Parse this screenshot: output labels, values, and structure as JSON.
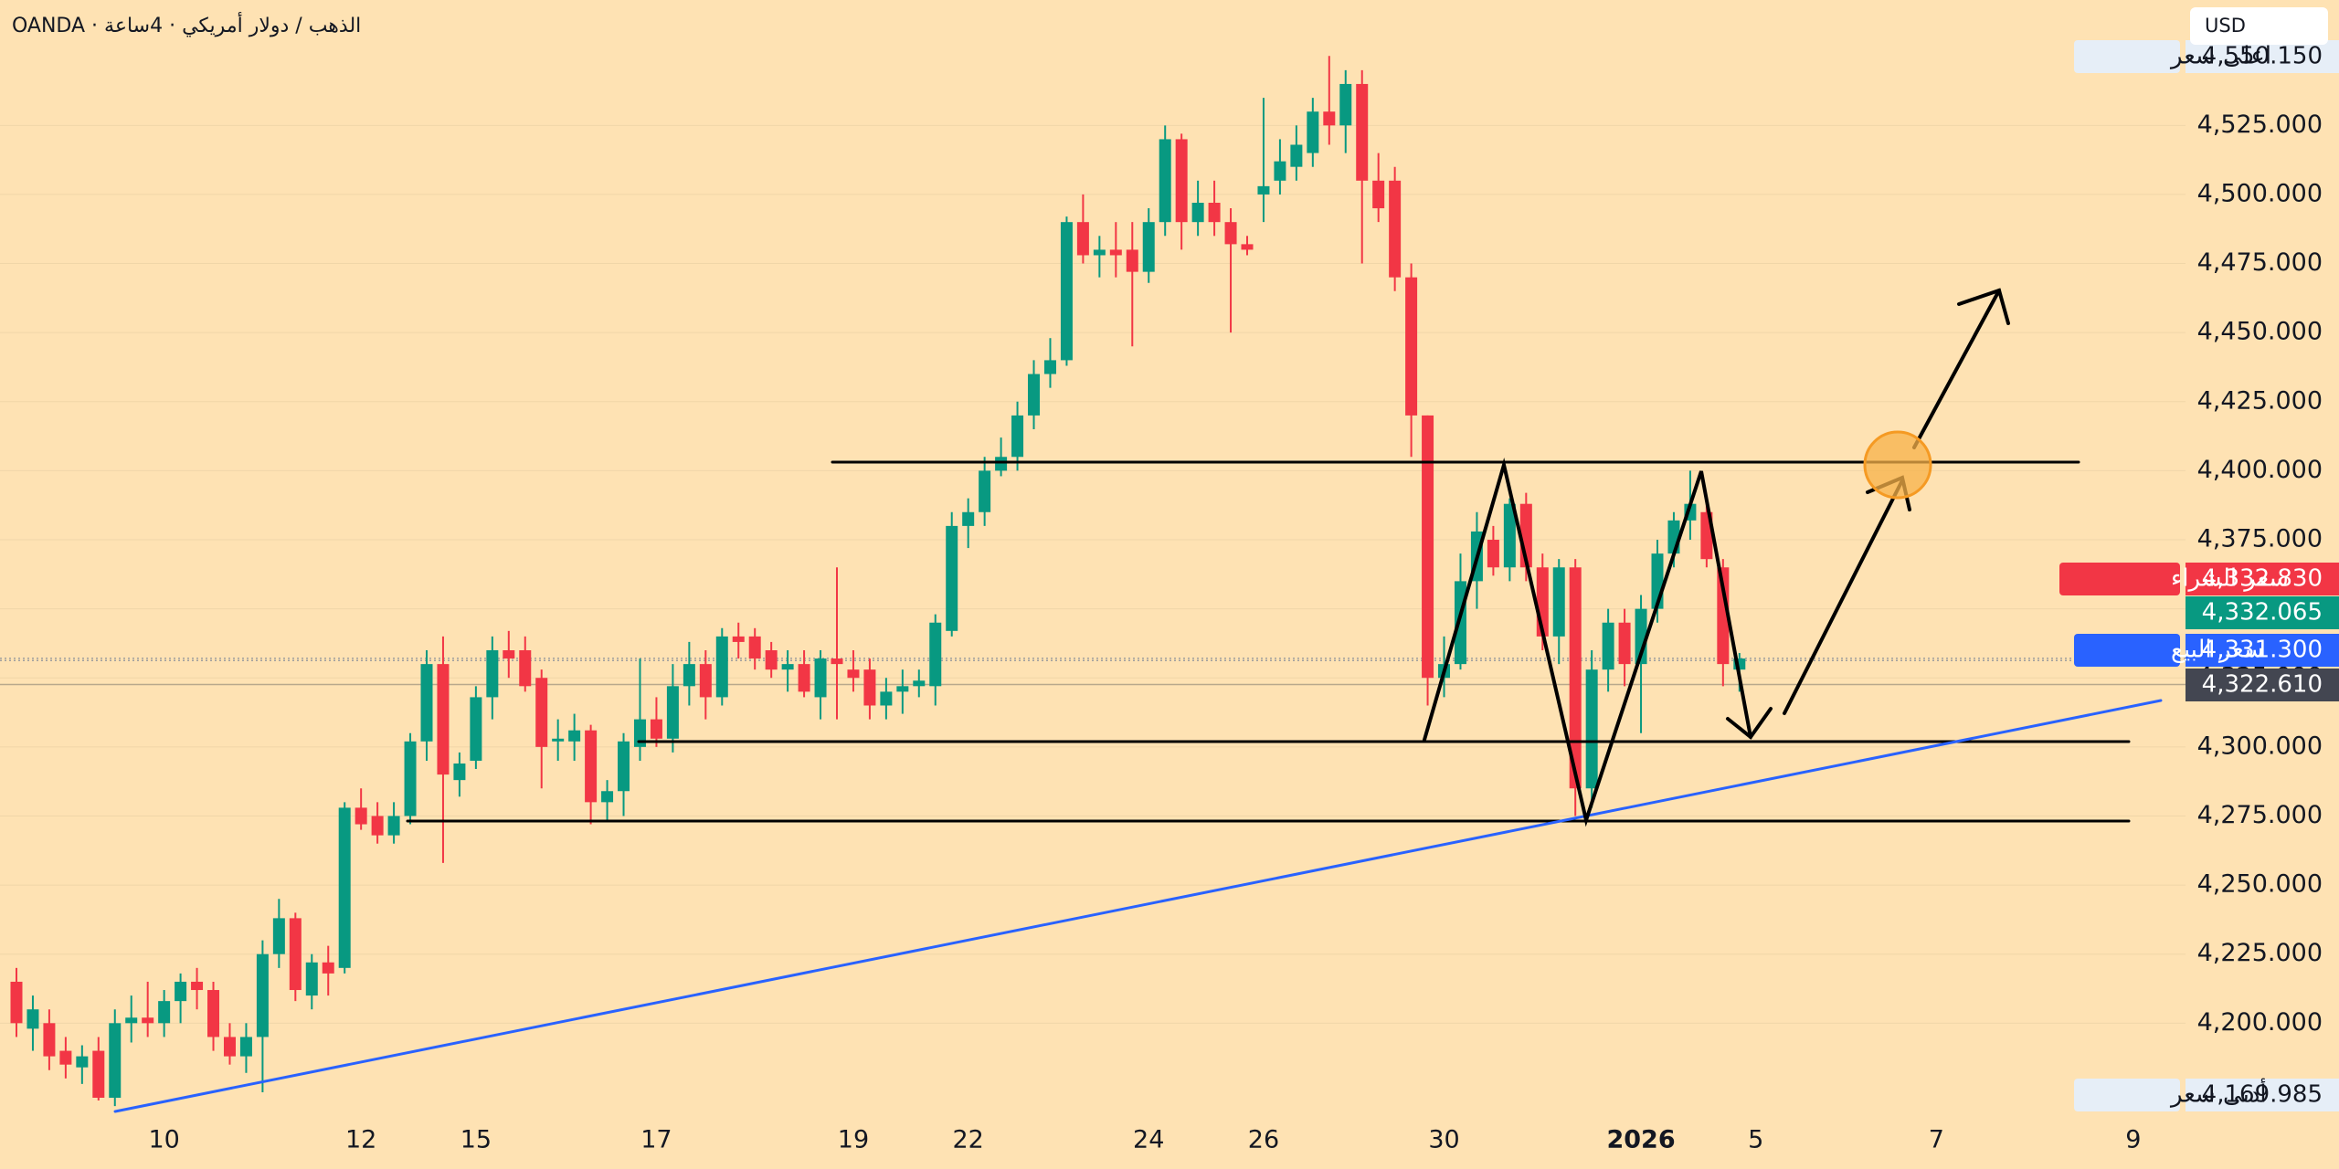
{
  "header": {
    "symbol": "OANDA · الذهب / دولار أمريكي · 4ساعة",
    "currency": "USD"
  },
  "chart_data": {
    "type": "candlestick",
    "categories": [
      null,
      null,
      null,
      null,
      null,
      null,
      null,
      null,
      null,
      "10",
      null,
      null,
      null,
      null,
      null,
      null,
      null,
      null,
      null,
      null,
      null,
      "12",
      null,
      null,
      null,
      null,
      null,
      null,
      "15",
      null,
      null,
      null,
      null,
      null,
      null,
      null,
      null,
      null,
      null,
      "17",
      null,
      null,
      null,
      null,
      null,
      null,
      null,
      null,
      null,
      null,
      null,
      "19",
      null,
      null,
      null,
      null,
      null,
      null,
      "22",
      null,
      null,
      null,
      null,
      null,
      null,
      null,
      null,
      null,
      null,
      "24",
      null,
      null,
      null,
      null,
      null,
      null,
      "26",
      null,
      null,
      null,
      null,
      null,
      null,
      null,
      null,
      null,
      null,
      "30",
      null,
      null,
      null,
      null,
      null,
      null,
      null,
      null,
      null,
      null,
      null,
      "2026",
      null,
      null,
      null,
      null,
      null,
      null,
      "5",
      null,
      null,
      null,
      null,
      null,
      null,
      null,
      null,
      null,
      null,
      "7",
      null,
      null,
      null,
      null,
      null,
      null,
      null,
      null,
      null,
      null,
      null,
      "9",
      null,
      null,
      null
    ],
    "open": [
      4215,
      4198,
      4200,
      4190,
      4184,
      4190,
      4173,
      4200,
      4202,
      4200,
      4208,
      4215,
      4212,
      4195,
      4188,
      4195,
      4225,
      4238,
      4210,
      4222,
      4220,
      4278,
      4275,
      4268,
      4275,
      4302,
      4330,
      4288,
      4295,
      4318,
      4335,
      4335,
      4325,
      4302,
      4302,
      4306,
      4280,
      4284,
      4300,
      4310,
      4303,
      4322,
      4330,
      4318,
      4340,
      4340,
      4335,
      4328,
      4330,
      4318,
      4332,
      4328,
      4328,
      4315,
      4320,
      4322,
      4322,
      4342,
      4380,
      4385,
      4400,
      4405,
      4420,
      4435,
      4440,
      4490,
      4478,
      4480,
      4480,
      4472,
      4490,
      4520,
      4490,
      4497,
      4490,
      4482,
      4500,
      4505,
      4510,
      4515,
      4530,
      4525,
      4540,
      4505,
      4505,
      4470,
      4420,
      4325,
      4330,
      4360,
      4375,
      4365,
      4388,
      4365,
      4340,
      4365,
      4285,
      4328,
      4345,
      4330,
      4350,
      4370,
      4382,
      4385,
      4365,
      4328,
      null,
      null,
      null,
      null,
      null,
      null,
      null,
      null,
      null,
      null,
      null,
      null,
      null,
      null,
      null,
      null,
      null,
      null,
      null,
      null,
      null,
      null,
      null,
      null,
      null,
      null,
      null
    ],
    "high": [
      4220,
      4210,
      4205,
      4195,
      4192,
      4195,
      4205,
      4210,
      4215,
      4212,
      4218,
      4220,
      4215,
      4200,
      4200,
      4230,
      4245,
      4240,
      4225,
      4228,
      4280,
      4285,
      4280,
      4280,
      4305,
      4335,
      4340,
      4298,
      4322,
      4340,
      4342,
      4340,
      4328,
      4310,
      4312,
      4308,
      4288,
      4305,
      4332,
      4318,
      4330,
      4338,
      4335,
      4343,
      4345,
      4343,
      4338,
      4335,
      4335,
      4335,
      4365,
      4335,
      4332,
      4325,
      4328,
      4328,
      4348,
      4385,
      4390,
      4405,
      4412,
      4425,
      4440,
      4448,
      4492,
      4500,
      4485,
      4490,
      4490,
      4495,
      4525,
      4522,
      4505,
      4505,
      4495,
      4485,
      4535,
      4520,
      4525,
      4535,
      4550.15,
      4545,
      4545,
      4515,
      4510,
      4475,
      4420,
      4340,
      4370,
      4385,
      4380,
      4390,
      4392,
      4370,
      4368,
      4368,
      4335,
      4350,
      4350,
      4355,
      4375,
      4385,
      4400,
      4390,
      4368,
      4334,
      null,
      null,
      null,
      null,
      null,
      null,
      null,
      null,
      null,
      null,
      null,
      null,
      null,
      null,
      null,
      null,
      null,
      null,
      null,
      null,
      null,
      null,
      null,
      null,
      null,
      null,
      null
    ],
    "low": [
      4195,
      4190,
      4183,
      4180,
      4178,
      4172,
      4169.985,
      4193,
      4195,
      4195,
      4200,
      4205,
      4190,
      4185,
      4182,
      4175,
      4220,
      4208,
      4205,
      4210,
      4218,
      4270,
      4265,
      4265,
      4272,
      4295,
      4258,
      4282,
      4292,
      4310,
      4325,
      4320,
      4285,
      4295,
      4295,
      4272,
      4273,
      4275,
      4295,
      4300,
      4298,
      4315,
      4310,
      4315,
      4332,
      4328,
      4325,
      4320,
      4318,
      4310,
      4310,
      4320,
      4310,
      4310,
      4312,
      4318,
      4315,
      4340,
      4372,
      4380,
      4398,
      4400,
      4415,
      4430,
      4438,
      4475,
      4470,
      4470,
      4445,
      4468,
      4485,
      4480,
      4485,
      4485,
      4450,
      4478,
      4490,
      4500,
      4505,
      4510,
      4518,
      4515,
      4475,
      4490,
      4465,
      4405,
      4315,
      4318,
      4328,
      4350,
      4362,
      4360,
      4360,
      4335,
      4330,
      4275,
      4278,
      4320,
      4322,
      4305,
      4345,
      4365,
      4375,
      4365,
      4322,
      4320,
      null,
      null,
      null,
      null,
      null,
      null,
      null,
      null,
      null,
      null,
      null,
      null,
      null,
      null,
      null,
      null,
      null,
      null,
      null,
      null,
      null,
      null,
      null,
      null,
      null,
      null,
      null
    ],
    "close": [
      4200,
      4205,
      4188,
      4185,
      4188,
      4173,
      4200,
      4202,
      4200,
      4208,
      4215,
      4212,
      4195,
      4188,
      4195,
      4225,
      4238,
      4212,
      4222,
      4218,
      4278,
      4272,
      4268,
      4275,
      4302,
      4330,
      4290,
      4294,
      4318,
      4335,
      4332,
      4322,
      4300,
      4303,
      4306,
      4280,
      4284,
      4302,
      4310,
      4303,
      4322,
      4330,
      4318,
      4340,
      4338,
      4332,
      4328,
      4330,
      4320,
      4332,
      4330,
      4325,
      4315,
      4320,
      4322,
      4324,
      4345,
      4380,
      4385,
      4400,
      4405,
      4420,
      4435,
      4440,
      4490,
      4478,
      4480,
      4478,
      4472,
      4490,
      4520,
      4490,
      4497,
      4490,
      4482,
      4480,
      4503,
      4512,
      4518,
      4530,
      4525,
      4540,
      4505,
      4495,
      4470,
      4420,
      4325,
      4330,
      4360,
      4378,
      4365,
      4388,
      4365,
      4340,
      4365,
      4285,
      4328,
      4345,
      4330,
      4350,
      4370,
      4382,
      4388,
      4368,
      4330,
      4332,
      null,
      null,
      null,
      null,
      null,
      null,
      null,
      null,
      null,
      null,
      null,
      null,
      null,
      null,
      null,
      null,
      null,
      null,
      null,
      null,
      null,
      null,
      null,
      null,
      null,
      null,
      null
    ],
    "up_color": "#089981",
    "down_color": "#f23645",
    "ylim": [
      4164.4,
      4570.4
    ],
    "yticks": [
      {
        "value": 4200,
        "label": "4,200.000"
      },
      {
        "value": 4225,
        "label": "4,225.000"
      },
      {
        "value": 4250,
        "label": "4,250.000"
      },
      {
        "value": 4275,
        "label": "4,275.000"
      },
      {
        "value": 4300,
        "label": "4,300.000"
      },
      {
        "value": 4325,
        "label": "4,325.000"
      },
      {
        "value": 4350,
        "label": "4,350.000"
      },
      {
        "value": 4375,
        "label": "4,375.000"
      },
      {
        "value": 4400,
        "label": "4,400.000"
      },
      {
        "value": 4425,
        "label": "4,425.000"
      },
      {
        "value": 4450,
        "label": "4,450.000"
      },
      {
        "value": 4475,
        "label": "4,475.000"
      },
      {
        "value": 4500,
        "label": "4,500.000"
      },
      {
        "value": 4525,
        "label": "4,525.000"
      }
    ],
    "grid": true,
    "price_labels": [
      {
        "name": "أعلى سعر",
        "value": 4550.15,
        "label": "4,550.150",
        "color": "#e6eef7"
      },
      {
        "name": "سعر الشراء",
        "value": 4332.83,
        "label": "4,332.830",
        "color": "#f23645"
      },
      {
        "value": 4332.065,
        "label": "4,332.065",
        "color": "#089981"
      },
      {
        "name": "سعر البيع",
        "value": 4331.3,
        "label": "4,331.300",
        "color": "#2962ff"
      },
      {
        "value": 4322.61,
        "label": "4,322.610",
        "color": "#434651"
      },
      {
        "name": "أدنى سعر",
        "value": 4169.985,
        "label": "4,169.985",
        "color": "#e6eef7"
      }
    ]
  }
}
